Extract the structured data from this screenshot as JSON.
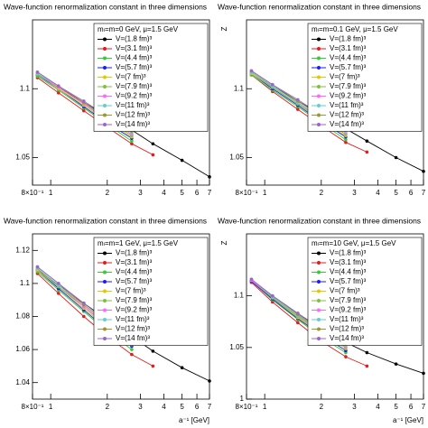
{
  "chart_data": [
    {
      "type": "line",
      "title": "Wave-function renormalization constant in three dimensions",
      "annotation": "mₗ=m=0 GeV, μ=1.5 GeV",
      "xlog": true,
      "x": [
        0.85,
        1.1,
        1.5,
        2,
        2.7,
        3.5,
        5,
        7
      ],
      "xlim": [
        0.8,
        7
      ],
      "xticks": [
        {
          "value": 0.8,
          "label": "8×10⁻¹"
        },
        1,
        2,
        3,
        4,
        5,
        6,
        7
      ],
      "ylim": [
        1.03,
        1.15
      ],
      "yticks": [
        1.05,
        1.1
      ],
      "legend": "upper right",
      "series": [
        {
          "name": "V=(1.8 fm)³",
          "color": "#000000",
          "values": [
            1.11,
            1.101,
            1.09,
            1.08,
            1.07,
            1.06,
            1.048,
            1.036
          ]
        },
        {
          "name": "V=(3.1 fm)³",
          "color": "#e41a1c",
          "values": [
            1.108,
            1.097,
            1.084,
            1.072,
            1.06,
            1.052,
            null,
            null
          ]
        },
        {
          "name": "V=(4.4 fm)³",
          "color": "#33cc33",
          "values": [
            1.109,
            1.099,
            1.086,
            1.074,
            1.062,
            null,
            null,
            null
          ]
        },
        {
          "name": "V=(5.7 fm)³",
          "color": "#1a1aff",
          "values": [
            1.11,
            1.1,
            1.087,
            1.075,
            1.064,
            null,
            null,
            null
          ]
        },
        {
          "name": "V=(7 fm)³",
          "color": "#e6c800",
          "values": [
            1.111,
            1.1,
            1.088,
            1.076,
            1.065,
            null,
            null,
            null
          ]
        },
        {
          "name": "V=(7.9 fm)³",
          "color": "#7fbf3f",
          "values": [
            1.11,
            1.101,
            1.089,
            1.077,
            1.066,
            null,
            null,
            null
          ]
        },
        {
          "name": "V=(9.2 fm)³",
          "color": "#ff66ff",
          "values": [
            1.111,
            1.101,
            1.089,
            1.078,
            1.067,
            null,
            null,
            null
          ]
        },
        {
          "name": "V=(11 fm)³",
          "color": "#66cccc",
          "values": [
            1.111,
            1.102,
            1.09,
            1.078,
            1.068,
            null,
            null,
            null
          ]
        },
        {
          "name": "V=(12 fm)³",
          "color": "#999933",
          "values": [
            1.112,
            1.102,
            1.09,
            1.079,
            1.069,
            null,
            null,
            null
          ]
        },
        {
          "name": "V=(14 fm)³",
          "color": "#9966cc",
          "values": [
            1.112,
            1.102,
            1.091,
            1.08,
            1.07,
            null,
            null,
            null
          ]
        }
      ]
    },
    {
      "type": "line",
      "title": "Wave-function renormalization constant in three dimensions",
      "annotation": "mₗ=m=0.1 GeV, μ=1.5 GeV",
      "xlog": true,
      "ylabel": "Z",
      "x": [
        0.85,
        1.1,
        1.5,
        2,
        2.7,
        3.5,
        5,
        7
      ],
      "xlim": [
        0.8,
        7
      ],
      "xticks": [
        {
          "value": 0.8,
          "label": "8×10⁻¹"
        },
        1,
        2,
        3,
        4,
        5,
        6,
        7
      ],
      "ylim": [
        1.03,
        1.15
      ],
      "yticks": [
        1.05,
        1.1
      ],
      "legend": "upper right",
      "series": [
        {
          "name": "V=(1.8 fm)³",
          "color": "#000000",
          "values": [
            1.112,
            1.102,
            1.091,
            1.081,
            1.071,
            1.062,
            1.05,
            1.04
          ]
        },
        {
          "name": "V=(3.1 fm)³",
          "color": "#e41a1c",
          "values": [
            1.11,
            1.098,
            1.085,
            1.073,
            1.061,
            1.054,
            null,
            null
          ]
        },
        {
          "name": "V=(4.4 fm)³",
          "color": "#33cc33",
          "values": [
            1.11,
            1.099,
            1.087,
            1.075,
            1.063,
            null,
            null,
            null
          ]
        },
        {
          "name": "V=(5.7 fm)³",
          "color": "#1a1aff",
          "values": [
            1.111,
            1.1,
            1.088,
            1.076,
            1.065,
            null,
            null,
            null
          ]
        },
        {
          "name": "V=(7 fm)³",
          "color": "#e6c800",
          "values": [
            1.111,
            1.101,
            1.089,
            1.077,
            1.066,
            null,
            null,
            null
          ]
        },
        {
          "name": "V=(7.9 fm)³",
          "color": "#7fbf3f",
          "values": [
            1.112,
            1.101,
            1.089,
            1.078,
            1.067,
            null,
            null,
            null
          ]
        },
        {
          "name": "V=(9.2 fm)³",
          "color": "#ff66ff",
          "values": [
            1.112,
            1.102,
            1.09,
            1.078,
            1.068,
            null,
            null,
            null
          ]
        },
        {
          "name": "V=(11 fm)³",
          "color": "#66cccc",
          "values": [
            1.112,
            1.102,
            1.09,
            1.079,
            1.069,
            null,
            null,
            null
          ]
        },
        {
          "name": "V=(12 fm)³",
          "color": "#999933",
          "values": [
            1.113,
            1.103,
            1.091,
            1.08,
            1.07,
            null,
            null,
            null
          ]
        },
        {
          "name": "V=(14 fm)³",
          "color": "#9966cc",
          "values": [
            1.113,
            1.103,
            1.092,
            1.081,
            1.071,
            null,
            null,
            null
          ]
        }
      ]
    },
    {
      "type": "line",
      "title": "Wave-function renormalization constant in three dimensions",
      "annotation": "mₗ=m=1 GeV, μ=1.5 GeV",
      "xlog": true,
      "xlabel": "a⁻¹ [GeV]",
      "x": [
        0.85,
        1.1,
        1.5,
        2,
        2.7,
        3.5,
        5,
        7
      ],
      "xlim": [
        0.8,
        7
      ],
      "xticks": [
        {
          "value": 0.8,
          "label": "8×10⁻¹"
        },
        1,
        2,
        3,
        4,
        5,
        6,
        7
      ],
      "ylim": [
        1.03,
        1.13
      ],
      "yticks": [
        1.04,
        1.06,
        1.08,
        1.1,
        1.12
      ],
      "legend": "upper right",
      "series": [
        {
          "name": "V=(1.8 fm)³",
          "color": "#000000",
          "values": [
            1.108,
            1.099,
            1.088,
            1.078,
            1.068,
            1.059,
            1.049,
            1.041
          ]
        },
        {
          "name": "V=(3.1 fm)³",
          "color": "#e41a1c",
          "values": [
            1.106,
            1.094,
            1.08,
            1.068,
            1.057,
            1.05,
            null,
            null
          ]
        },
        {
          "name": "V=(4.4 fm)³",
          "color": "#33cc33",
          "values": [
            1.107,
            1.096,
            1.083,
            1.071,
            1.06,
            null,
            null,
            null
          ]
        },
        {
          "name": "V=(5.7 fm)³",
          "color": "#1a1aff",
          "values": [
            1.108,
            1.097,
            1.084,
            1.072,
            1.062,
            null,
            null,
            null
          ]
        },
        {
          "name": "V=(7 fm)³",
          "color": "#e6c800",
          "values": [
            1.108,
            1.098,
            1.085,
            1.073,
            1.063,
            null,
            null,
            null
          ]
        },
        {
          "name": "V=(7.9 fm)³",
          "color": "#7fbf3f",
          "values": [
            1.109,
            1.098,
            1.086,
            1.074,
            1.064,
            null,
            null,
            null
          ]
        },
        {
          "name": "V=(9.2 fm)³",
          "color": "#ff66ff",
          "values": [
            1.109,
            1.099,
            1.086,
            1.075,
            1.065,
            null,
            null,
            null
          ]
        },
        {
          "name": "V=(11 fm)³",
          "color": "#66cccc",
          "values": [
            1.109,
            1.099,
            1.087,
            1.076,
            1.066,
            null,
            null,
            null
          ]
        },
        {
          "name": "V=(12 fm)³",
          "color": "#999933",
          "values": [
            1.11,
            1.1,
            1.087,
            1.076,
            1.066,
            null,
            null,
            null
          ]
        },
        {
          "name": "V=(14 fm)³",
          "color": "#9966cc",
          "values": [
            1.11,
            1.1,
            1.088,
            1.077,
            1.067,
            null,
            null,
            null
          ]
        }
      ]
    },
    {
      "type": "line",
      "title": "Wave-function renormalization constant in three dimensions",
      "annotation": "mₗ=m=10 GeV, μ=1.5 GeV",
      "xlog": true,
      "xlabel": "a⁻¹ [GeV]",
      "ylabel": "Z",
      "x": [
        0.85,
        1.1,
        1.5,
        2,
        2.7,
        3.5,
        5,
        7
      ],
      "xlim": [
        0.8,
        7
      ],
      "xticks": [
        {
          "value": 0.8,
          "label": "8×10⁻¹"
        },
        1,
        2,
        3,
        4,
        5,
        6,
        7
      ],
      "ylim": [
        1.0,
        1.16
      ],
      "yticks": [
        1,
        1.05,
        1.1
      ],
      "legend": "upper right",
      "series": [
        {
          "name": "V=(1.8 fm)³",
          "color": "#000000",
          "values": [
            1.115,
            1.1,
            1.083,
            1.068,
            1.055,
            1.045,
            1.034,
            1.025
          ]
        },
        {
          "name": "V=(3.1 fm)³",
          "color": "#e41a1c",
          "values": [
            1.113,
            1.094,
            1.074,
            1.056,
            1.041,
            1.032,
            null,
            null
          ]
        },
        {
          "name": "V=(4.4 fm)³",
          "color": "#33cc33",
          "values": [
            1.114,
            1.096,
            1.077,
            1.06,
            1.045,
            null,
            null,
            null
          ]
        },
        {
          "name": "V=(5.7 fm)³",
          "color": "#1a1aff",
          "values": [
            1.114,
            1.097,
            1.078,
            1.062,
            1.047,
            null,
            null,
            null
          ]
        },
        {
          "name": "V=(7 fm)³",
          "color": "#e6c800",
          "values": [
            1.115,
            1.098,
            1.079,
            1.063,
            1.049,
            null,
            null,
            null
          ]
        },
        {
          "name": "V=(7.9 fm)³",
          "color": "#7fbf3f",
          "values": [
            1.115,
            1.098,
            1.08,
            1.064,
            1.05,
            null,
            null,
            null
          ]
        },
        {
          "name": "V=(9.2 fm)³",
          "color": "#ff66ff",
          "values": [
            1.115,
            1.099,
            1.081,
            1.065,
            1.051,
            null,
            null,
            null
          ]
        },
        {
          "name": "V=(11 fm)³",
          "color": "#66cccc",
          "values": [
            1.116,
            1.099,
            1.081,
            1.066,
            1.052,
            null,
            null,
            null
          ]
        },
        {
          "name": "V=(12 fm)³",
          "color": "#999933",
          "values": [
            1.116,
            1.1,
            1.082,
            1.066,
            1.053,
            null,
            null,
            null
          ]
        },
        {
          "name": "V=(14 fm)³",
          "color": "#9966cc",
          "values": [
            1.116,
            1.1,
            1.083,
            1.067,
            1.054,
            null,
            null,
            null
          ]
        }
      ]
    }
  ]
}
